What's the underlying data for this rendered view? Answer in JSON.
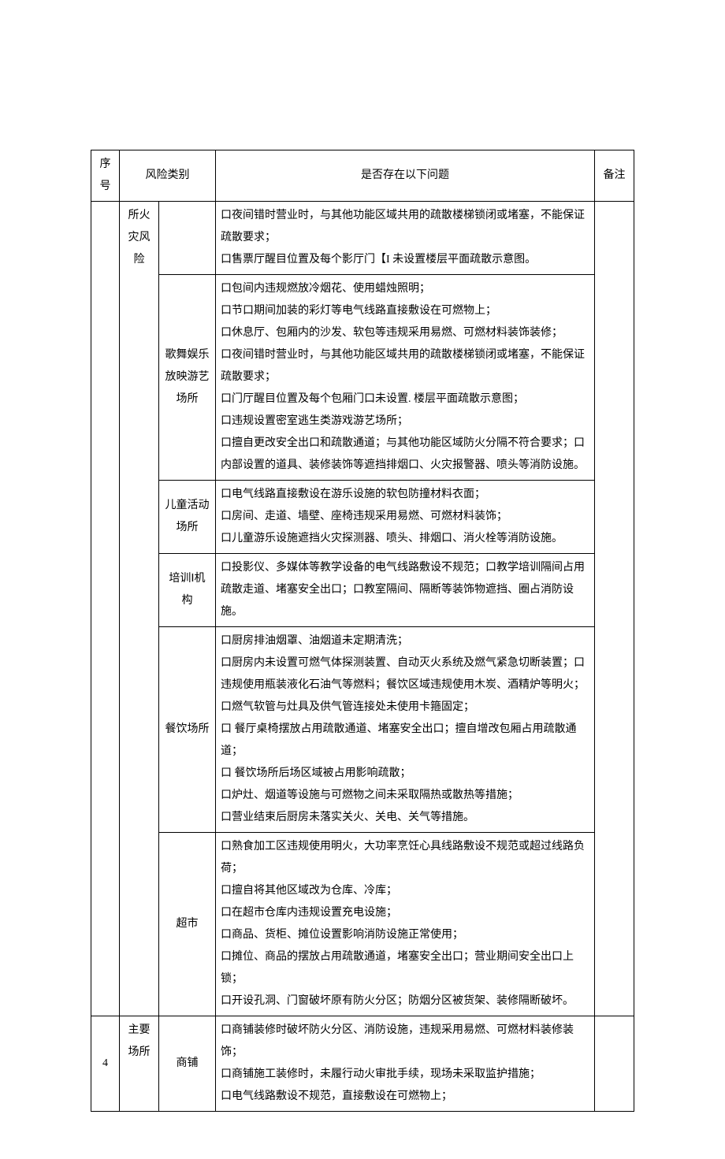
{
  "header": {
    "seq": "序号",
    "category": "风险类别",
    "question": "是否存在以下问题",
    "note": "备注"
  },
  "rows": [
    {
      "seq": "",
      "cat1": "所火灾风险",
      "cat2": "",
      "q": "口夜间错时营业时，与其他功能区域共用的疏散楼梯锁闭或堵塞，不能保证疏散要求；\n口售票厅醒目位置及每个影厅门【I 未设置楼层平面疏散示意图。"
    },
    {
      "cat2": "歌舞娱乐放映游艺场所",
      "q": "口包间内违规燃放冷烟花、使用蜡烛照明；\n口节口期间加装的彩灯等电气线路直接敷设在可燃物上；\n口休息厅、包厢内的沙发、软包等违规采用易燃、可燃材料装饰装修；\n口夜间错时营业时，与其他功能区域共用的疏散楼梯锁闭或堵塞，不能保证疏散要求；\n口门厅醒目位置及每个包厢门口未设置. 楼层平面疏散示意图；\n口违规设置密室逃生类游戏游艺场所；\n口擅自更改安全出口和疏散通道；与其他功能区域防火分隔不符合要求；口内部设置的道具、装修装饰等遮挡排烟口、火灾报警器、喷头等消防设施。"
    },
    {
      "cat2": "儿童活动场所",
      "q": "口电气线路直接敷设在游乐设施的软包防撞材料衣面；\n口房间、走道、墙壁、座椅违规采用易燃、可燃材料装饰；\n口儿童游乐设施遮挡火灾探测器、喷头、排烟口、消火栓等消防设施。"
    },
    {
      "cat2": "培训Ⅰ机构",
      "q": "口投影仪、多媒体等教学设备的电气线路敷设不规范；口教学培训隔间占用疏散走道、堵塞安全出口；口教室隔间、隔断等装饰物遮挡、圈占消防设施。"
    },
    {
      "cat2": "餐饮场所",
      "q": "口厨房排油烟罩、油烟道未定期清洗；\n口厨房内未设置可燃气体探测装置、自动灭火系统及燃气紧急切断装置；口违规使用瓶装液化石油气等燃料；餐饮区域违规使用木炭、酒精炉等明火；\n口燃气软管与灶具及供气管连接处未使用卡箍固定；\n口 餐厅桌椅摆放占用疏散通道、堵塞安全出口；擅自增改包厢占用疏散通道；\n口 餐饮场所后场区域被占用影响疏散；\n口炉灶、烟道等设施与可燃物之间未采取隔热或散热等措施；\n口营业结束后厨房未落实关火、关电、关气等措施。"
    },
    {
      "cat2": "超市",
      "q": "口熟食加工区违规使用明火，大功率烹饪心具线路敷设不规范或超过线路负荷；\n口擅自将其他区域改为仓库、冷库；\n口在超市仓库内违规设置充电设施；\n口商品、货柜、摊位设置影响消防设施正常使用；\n口摊位、商品的摆放占用疏散通道，堵塞安全出口；营业期间安全出口上锁；\n口开设孔洞、门窗破坏原有防火分区；防烟分区被货架、装修隔断破坏。"
    },
    {
      "seq": "4",
      "cat1": "主要场所",
      "cat2": "商铺",
      "q": "口商铺装修时破坏防火分区、消防设施，违规采用易燃、可燃材料装修装饰；\n口商铺施工装修时，未履行动火审批手续，现场未采取监护措施；\n口电气线路敷设不规范，直接敷设在可燃物上；"
    }
  ]
}
